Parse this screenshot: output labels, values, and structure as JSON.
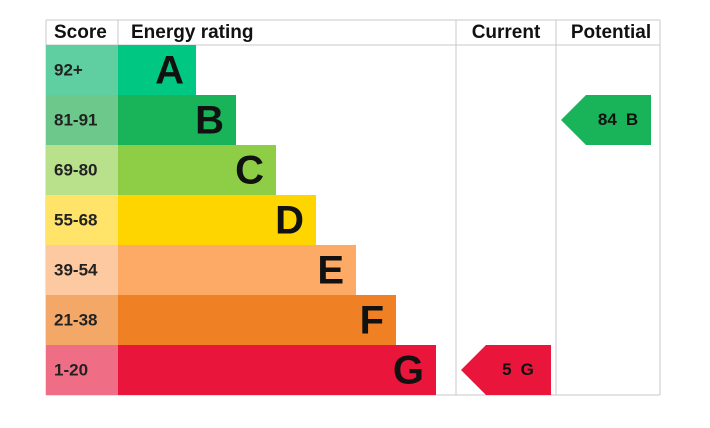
{
  "header": {
    "score": "Score",
    "rating": "Energy rating",
    "current": "Current",
    "potential": "Potential"
  },
  "bands": [
    {
      "score": "92+",
      "letter": "A",
      "color": "#00c781",
      "score_color": "#5fcea0"
    },
    {
      "score": "81-91",
      "letter": "B",
      "color": "#19b459",
      "score_color": "#6cc98b"
    },
    {
      "score": "69-80",
      "letter": "C",
      "color": "#8dce46",
      "score_color": "#b9e08b"
    },
    {
      "score": "55-68",
      "letter": "D",
      "color": "#ffd500",
      "score_color": "#ffe469"
    },
    {
      "score": "39-54",
      "letter": "E",
      "color": "#fcaa65",
      "score_color": "#fdc9a0"
    },
    {
      "score": "21-38",
      "letter": "F",
      "color": "#ef8023",
      "score_color": "#f4a868"
    },
    {
      "score": "1-20",
      "letter": "G",
      "color": "#e9153b",
      "score_color": "#ef6e86"
    }
  ],
  "current": {
    "value": 5,
    "letter": "G"
  },
  "potential": {
    "value": 84,
    "letter": "B"
  }
}
